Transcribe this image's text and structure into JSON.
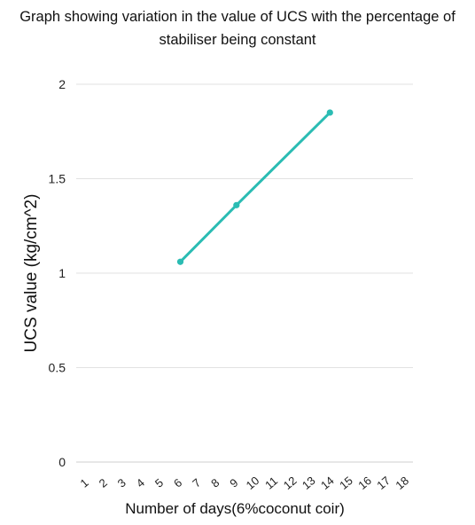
{
  "chart_data": {
    "type": "line",
    "title_line1": "Graph showing variation in the value of UCS with the percentage of",
    "title_line2": "stabiliser being constant",
    "xlabel": "Number of days(6%coconut coir)",
    "ylabel": "UCS value (kg/cm^2)",
    "categories": [
      "1",
      "2",
      "3",
      "4",
      "5",
      "6",
      "7",
      "8",
      "9",
      "10",
      "11",
      "12",
      "13",
      "14",
      "15",
      "16",
      "17",
      "18"
    ],
    "y_ticks": [
      "0",
      "0.5",
      "1",
      "1.5",
      "2"
    ],
    "ylim": [
      0,
      2
    ],
    "grid": true,
    "series": [
      {
        "color": "#2bbcb3",
        "points": [
          {
            "x": "6",
            "y": 1.06
          },
          {
            "x": "9",
            "y": 1.36
          },
          {
            "x": "14",
            "y": 1.85
          }
        ]
      }
    ]
  }
}
